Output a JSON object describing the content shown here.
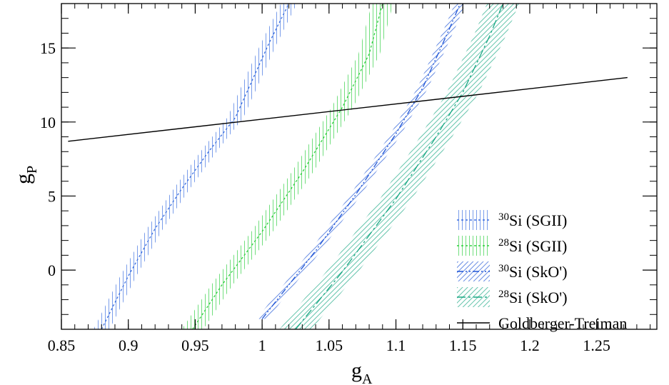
{
  "chart_data": {
    "type": "line",
    "xlabel": "g",
    "xlabel_sub": "A",
    "ylabel": "g",
    "ylabel_sub": "P",
    "xlim": [
      0.85,
      1.295
    ],
    "ylim": [
      -4,
      18
    ],
    "xticks": [
      0.85,
      0.9,
      0.95,
      1,
      1.05,
      1.1,
      1.15,
      1.2,
      1.25
    ],
    "xtick_labels": [
      "0.85",
      "0.9",
      "0.95",
      "1",
      "1.05",
      "1.1",
      "1.15",
      "1.2",
      "1.25"
    ],
    "yticks": [
      0,
      5,
      10,
      15
    ],
    "ytick_labels": [
      "0",
      "5",
      "10",
      "15"
    ],
    "legend_position": "bottom-right",
    "series": [
      {
        "name": "30Si (SGII)",
        "legend_sup": "30",
        "legend_text": "Si (SGII)",
        "color": "#3a6fe0",
        "dash": "3,3",
        "hatch": "vertical",
        "band_halfwidth": 0.006,
        "x": [
          0.88,
          0.9,
          0.92,
          0.94,
          0.96,
          0.98,
          0.99,
          1.005,
          1.02
        ],
        "y": [
          -4.0,
          -0.4,
          2.8,
          5.5,
          8.0,
          10.3,
          12.3,
          15.3,
          18.0
        ]
      },
      {
        "name": "28Si (SGII)",
        "legend_sup": "28",
        "legend_text": "Si (SGII)",
        "color": "#2fcf3f",
        "dash": "3,3",
        "hatch": "vertical",
        "band_halfwidth": 0.008,
        "x": [
          0.948,
          0.97,
          1.0,
          1.03,
          1.06,
          1.08,
          1.09
        ],
        "y": [
          -4.0,
          -1.0,
          2.6,
          6.6,
          11.0,
          14.6,
          18.0
        ]
      },
      {
        "name": "30Si (SkO')",
        "legend_sup": "30",
        "legend_text": "Si (SkO')",
        "color": "#1f55d6",
        "dash": "9,3,2,3,2,3",
        "hatch": "diagonal",
        "band_halfwidth": 0.004,
        "x": [
          1.0,
          1.04,
          1.07,
          1.1,
          1.12,
          1.14,
          1.148
        ],
        "y": [
          -3.3,
          1.3,
          5.1,
          9.2,
          12.3,
          16.3,
          18.0
        ]
      },
      {
        "name": "28Si (SkO')",
        "legend_sup": "28",
        "legend_text": "Si (SkO')",
        "color": "#1aa884",
        "dash": "12,4,3,4",
        "hatch": "diagonal",
        "band_halfwidth": 0.012,
        "x": [
          1.025,
          1.06,
          1.1,
          1.13,
          1.15,
          1.17,
          1.18
        ],
        "y": [
          -4.0,
          -0.1,
          4.8,
          9.0,
          12.0,
          15.8,
          18.0
        ]
      },
      {
        "name": "Goldberger-Treiman",
        "legend_text": "Goldberger-Treiman",
        "color": "#000000",
        "dash": "",
        "x": [
          0.855,
          1.273
        ],
        "y": [
          8.7,
          13.0
        ]
      }
    ]
  }
}
